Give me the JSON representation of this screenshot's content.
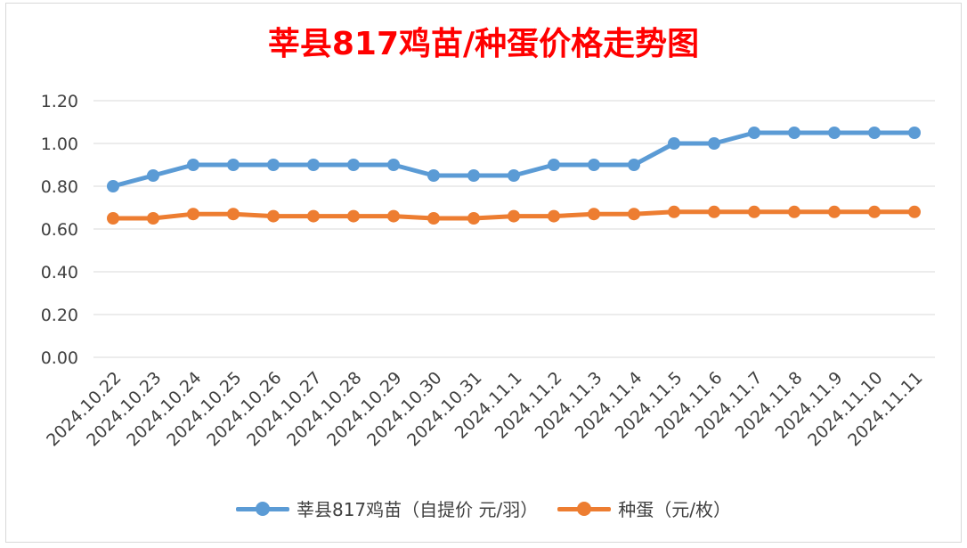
{
  "chart_data": {
    "type": "line",
    "title": "莘县817鸡苗/种蛋价格走势图",
    "xlabel": "",
    "ylabel": "",
    "categories": [
      "2024.10.22",
      "2024.10.23",
      "2024.10.24",
      "2024.10.25",
      "2024.10.26",
      "2024.10.27",
      "2024.10.28",
      "2024.10.29",
      "2024.10.30",
      "2024.10.31",
      "2024.11.1",
      "2024.11.2",
      "2024.11.3",
      "2024.11.4",
      "2024.11.5",
      "2024.11.6",
      "2024.11.7",
      "2024.11.8",
      "2024.11.9",
      "2024.11.10",
      "2024.11.11"
    ],
    "ylim": [
      0,
      1.2
    ],
    "yticks": [
      "0.00",
      "0.20",
      "0.40",
      "0.60",
      "0.80",
      "1.00",
      "1.20"
    ],
    "grid": true,
    "legend_position": "bottom",
    "series": [
      {
        "name": "莘县817鸡苗（自提价 元/羽）",
        "color": "#5b9bd5",
        "values": [
          0.8,
          0.85,
          0.9,
          0.9,
          0.9,
          0.9,
          0.9,
          0.9,
          0.85,
          0.85,
          0.85,
          0.9,
          0.9,
          0.9,
          1.0,
          1.0,
          1.05,
          1.05,
          1.05,
          1.05,
          1.05
        ]
      },
      {
        "name": "种蛋（元/枚）",
        "color": "#ed7d31",
        "values": [
          0.65,
          0.65,
          0.67,
          0.67,
          0.66,
          0.66,
          0.66,
          0.66,
          0.65,
          0.65,
          0.66,
          0.66,
          0.67,
          0.67,
          0.68,
          0.68,
          0.68,
          0.68,
          0.68,
          0.68,
          0.68
        ]
      }
    ]
  }
}
